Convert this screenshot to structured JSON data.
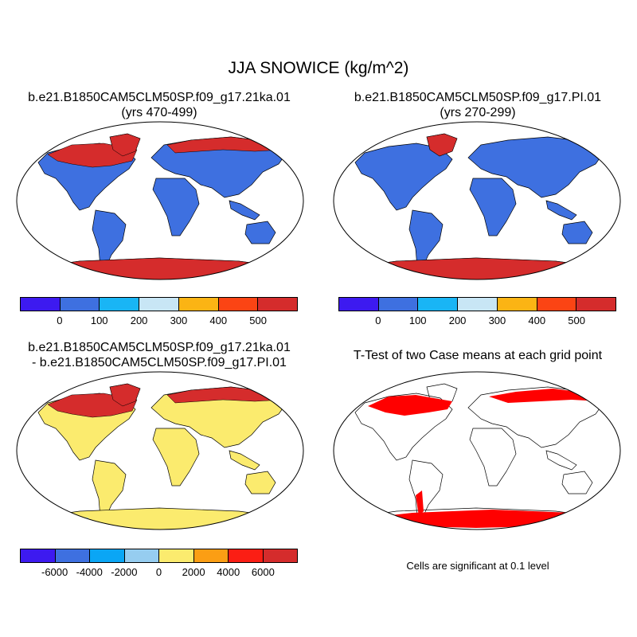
{
  "main_title": "JJA SNOWICE (kg/m^2)",
  "panels": {
    "top_left": {
      "title_line1": "b.e21.B1850CAM5CLM50SP.f09_g17.21ka.01",
      "title_line2": "(yrs 470-499)"
    },
    "top_right": {
      "title_line1": "b.e21.B1850CAM5CLM50SP.f09_g17.PI.01",
      "title_line2": "(yrs 270-299)"
    },
    "bottom_left": {
      "title_line1": "b.e21.B1850CAM5CLM50SP.f09_g17.21ka.01",
      "title_line2": "- b.e21.B1850CAM5CLM50SP.f09_g17.PI.01"
    },
    "bottom_right": {
      "title_line1": "T-Test of two Case means at each grid point",
      "note": "Cells are significant at 0.1 level"
    }
  },
  "colorbars": {
    "case": {
      "colors": [
        "#3d1af0",
        "#3e70e0",
        "#19b5f5",
        "#c8e6f5",
        "#fbb414",
        "#fb4414",
        "#d52c2c"
      ],
      "labels": [
        "0",
        "100",
        "200",
        "300",
        "400",
        "500"
      ]
    },
    "diff": {
      "colors": [
        "#3d1af0",
        "#3e70e0",
        "#0aa6f5",
        "#96cdf0",
        "#fbeb6e",
        "#fb9e14",
        "#fb1e14",
        "#d52c2c"
      ],
      "labels": [
        "-6000",
        "-4000",
        "-2000",
        "0",
        "2000",
        "4000",
        "6000"
      ]
    }
  },
  "map_colors": {
    "ocean": "#ffffff",
    "land_case": "#3e70e0",
    "ice_case": "#d52c2c",
    "land_diff": "#fbeb6e",
    "ice_diff": "#d52c2c",
    "diff_minor": "#96cdf0",
    "significant": "#ff0000"
  }
}
